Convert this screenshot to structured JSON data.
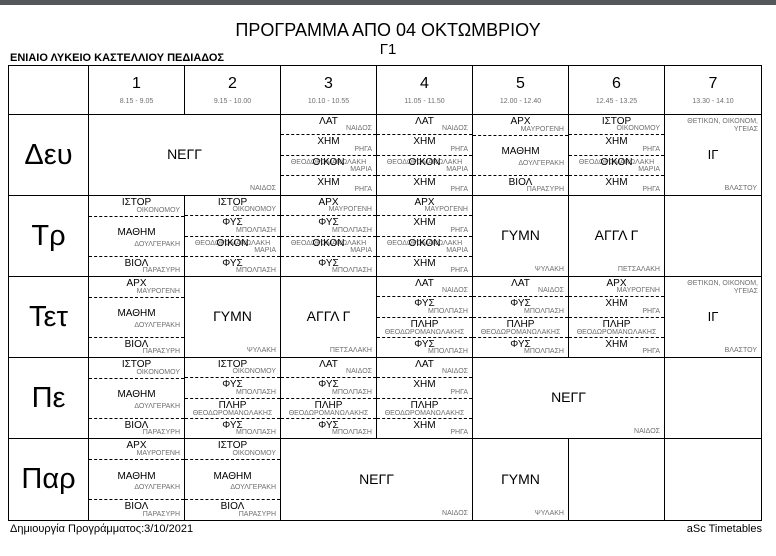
{
  "header": {
    "title": "ΠΡΟΓΡΑΜΜΑ ΑΠΟ 04 ΟΚΤΩΜΒΡΙΟΥ",
    "class_name": "Γ1",
    "school": "ΕΝΙΑΙΟ ΛΥΚΕΙΟ ΚΑΣΤΕΛΛΙΟΥ ΠΕΔΙΑΔΟΣ"
  },
  "footer": {
    "left": "Δημιουργία Προγράμματος:3/10/2021",
    "right": "aSc Timetables"
  },
  "colors": {
    "topbar": "#56575a",
    "teacher_text": "#6f6f6f",
    "grid_line": "#000000"
  },
  "periods": [
    {
      "num": "1",
      "time": "8.15 - 9.05"
    },
    {
      "num": "2",
      "time": "9.15 - 10.00"
    },
    {
      "num": "3",
      "time": "10.10 - 10.55"
    },
    {
      "num": "4",
      "time": "11.05 - 11.50"
    },
    {
      "num": "5",
      "time": "12.00 - 12.40"
    },
    {
      "num": "6",
      "time": "12.45 - 13.25"
    },
    {
      "num": "7",
      "time": "13.30 - 14.10"
    }
  ],
  "days": [
    {
      "label": "Δευ",
      "cells": [
        {
          "kind": "single",
          "span": 2,
          "subject": "ΝΕΓΓ",
          "teacher": "ΝΑΙΔΟΣ"
        },
        {
          "kind": "stack",
          "span": 1,
          "lessons": [
            {
              "subject": "ΛΑΤ",
              "teacher": "ΝΑΙΔΟΣ"
            },
            {
              "subject": "ΧΗΜ",
              "teacher": "ΡΗΓΑ"
            },
            {
              "style": "overlap",
              "subject": "ΟΙΚΟΝ",
              "teacher": "ΘΕΟΔΩΡΟΜΑΝΩΛΑΚΗ",
              "teacher2": "ΜΑΡΙΑ"
            },
            {
              "subject": "ΧΗΜ",
              "teacher": "ΡΗΓΑ"
            }
          ]
        },
        {
          "kind": "stack",
          "span": 1,
          "lessons": [
            {
              "subject": "ΛΑΤ",
              "teacher": "ΝΑΙΔΟΣ"
            },
            {
              "subject": "ΧΗΜ",
              "teacher": "ΡΗΓΑ"
            },
            {
              "style": "overlap",
              "subject": "ΟΙΚΟΝ",
              "teacher": "ΘΕΟΔΩΡΟΜΑΝΩΛΑΚΗ",
              "teacher2": "ΜΑΡΙΑ"
            },
            {
              "subject": "ΧΗΜ",
              "teacher": "ΡΗΓΑ"
            }
          ]
        },
        {
          "kind": "stack",
          "span": 1,
          "lessons": [
            {
              "subject": "ΑΡΧ",
              "teacher": "ΜΑΥΡΟΓΕΝΗ"
            },
            {
              "subject": "ΜΑΘΗΜ",
              "teacher": "ΔΟΥΛΓΕΡΑΚΗ",
              "tall": true
            },
            {
              "subject": "ΒΙΟΛ",
              "teacher": "ΠΑΡΑΣΥΡΗ"
            }
          ]
        },
        {
          "kind": "stack",
          "span": 1,
          "lessons": [
            {
              "subject": "ΙΣΤΟΡ",
              "teacher": "ΟΙΚΟΝΟΜΟΥ"
            },
            {
              "subject": "ΧΗΜ",
              "teacher": "ΡΗΓΑ"
            },
            {
              "style": "overlap",
              "subject": "ΟΙΚΟΝ",
              "teacher": "ΘΕΟΔΩΡΟΜΑΝΩΛΑΚΗ",
              "teacher2": "ΜΑΡΙΑ"
            },
            {
              "subject": "ΧΗΜ",
              "teacher": "ΡΗΓΑ"
            }
          ]
        },
        {
          "kind": "group",
          "span": 1,
          "group": "ΘΕΤΙΚΩΝ, ΟΙΚΟΝΟΜ, ΥΓΕΙΑΣ",
          "subject": "ΙΓ",
          "teacher": "ΒΛΑΣΤΟΥ"
        }
      ]
    },
    {
      "label": "Τρ",
      "cells": [
        {
          "kind": "stack",
          "span": 1,
          "lessons": [
            {
              "subject": "ΙΣΤΟΡ",
              "teacher": "ΟΙΚΟΝΟΜΟΥ"
            },
            {
              "subject": "ΜΑΘΗΜ",
              "teacher": "ΔΟΥΛΓΕΡΑΚΗ",
              "tall": true
            },
            {
              "subject": "ΒΙΟΛ",
              "teacher": "ΠΑΡΑΣΥΡΗ"
            }
          ]
        },
        {
          "kind": "stack",
          "span": 1,
          "lessons": [
            {
              "subject": "ΙΣΤΟΡ",
              "teacher": "ΟΙΚΟΝΟΜΟΥ"
            },
            {
              "subject": "ΦΥΣ",
              "teacher": "ΜΠΟΛΠΑΣΗ"
            },
            {
              "style": "overlap",
              "subject": "ΟΙΚΟΝ",
              "teacher": "ΘΕΟΔΩΡΟΜΑΝΩΛΑΚΗ",
              "teacher2": "ΜΑΡΙΑ"
            },
            {
              "subject": "ΦΥΣ",
              "teacher": "ΜΠΟΛΠΑΣΗ"
            }
          ]
        },
        {
          "kind": "stack",
          "span": 1,
          "lessons": [
            {
              "subject": "ΑΡΧ",
              "teacher": "ΜΑΥΡΟΓΕΝΗ"
            },
            {
              "subject": "ΦΥΣ",
              "teacher": "ΜΠΟΛΠΑΣΗ"
            },
            {
              "style": "overlap",
              "subject": "ΟΙΚΟΝ",
              "teacher": "ΘΕΟΔΩΡΟΜΑΝΩΛΑΚΗ",
              "teacher2": "ΜΑΡΙΑ"
            },
            {
              "subject": "ΦΥΣ",
              "teacher": "ΜΠΟΛΠΑΣΗ"
            }
          ]
        },
        {
          "kind": "stack",
          "span": 1,
          "lessons": [
            {
              "subject": "ΑΡΧ",
              "teacher": "ΜΑΥΡΟΓΕΝΗ"
            },
            {
              "subject": "ΧΗΜ",
              "teacher": "ΡΗΓΑ"
            },
            {
              "style": "overlap",
              "subject": "ΟΙΚΟΝ",
              "teacher": "ΘΕΟΔΩΡΟΜΑΝΩΛΑΚΗ",
              "teacher2": "ΜΑΡΙΑ"
            },
            {
              "subject": "ΧΗΜ",
              "teacher": "ΡΗΓΑ"
            }
          ]
        },
        {
          "kind": "single",
          "span": 1,
          "subject": "ΓΥΜΝ",
          "teacher": "ΨΥΛΑΚΗ"
        },
        {
          "kind": "single",
          "span": 1,
          "subject": "ΑΓΓΛ Γ",
          "teacher": "ΠΕΤΣΑΛΑΚΗ"
        },
        {
          "kind": "empty",
          "span": 1
        }
      ]
    },
    {
      "label": "Τετ",
      "cells": [
        {
          "kind": "stack",
          "span": 1,
          "lessons": [
            {
              "subject": "ΑΡΧ",
              "teacher": "ΜΑΥΡΟΓΕΝΗ"
            },
            {
              "subject": "ΜΑΘΗΜ",
              "teacher": "ΔΟΥΛΓΕΡΑΚΗ",
              "tall": true
            },
            {
              "subject": "ΒΙΟΛ",
              "teacher": "ΠΑΡΑΣΥΡΗ"
            }
          ]
        },
        {
          "kind": "single",
          "span": 1,
          "subject": "ΓΥΜΝ",
          "teacher": "ΨΥΛΑΚΗ"
        },
        {
          "kind": "single",
          "span": 1,
          "subject": "ΑΓΓΛ Γ",
          "teacher": "ΠΕΤΣΑΛΑΚΗ"
        },
        {
          "kind": "stack",
          "span": 1,
          "lessons": [
            {
              "subject": "ΛΑΤ",
              "teacher": "ΝΑΙΔΟΣ"
            },
            {
              "subject": "ΦΥΣ",
              "teacher": "ΜΠΟΛΠΑΣΗ"
            },
            {
              "style": "twoline",
              "subject": "ΠΛΗΡ",
              "teacher": "ΘΕΟΔΩΡΟΜΑΝΩΛΑΚΗΣ"
            },
            {
              "subject": "ΦΥΣ",
              "teacher": "ΜΠΟΛΠΑΣΗ"
            }
          ]
        },
        {
          "kind": "stack",
          "span": 1,
          "lessons": [
            {
              "subject": "ΛΑΤ",
              "teacher": "ΝΑΙΔΟΣ"
            },
            {
              "subject": "ΦΥΣ",
              "teacher": "ΜΠΟΛΠΑΣΗ"
            },
            {
              "style": "twoline",
              "subject": "ΠΛΗΡ",
              "teacher": "ΘΕΟΔΩΡΟΜΑΝΩΛΑΚΗΣ"
            },
            {
              "subject": "ΦΥΣ",
              "teacher": "ΜΠΟΛΠΑΣΗ"
            }
          ]
        },
        {
          "kind": "stack",
          "span": 1,
          "lessons": [
            {
              "subject": "ΑΡΧ",
              "teacher": "ΜΑΥΡΟΓΕΝΗ"
            },
            {
              "subject": "ΧΗΜ",
              "teacher": "ΡΗΓΑ"
            },
            {
              "style": "twoline",
              "subject": "ΠΛΗΡ",
              "teacher": "ΘΕΟΔΩΡΟΜΑΝΩΛΑΚΗΣ"
            },
            {
              "subject": "ΧΗΜ",
              "teacher": "ΡΗΓΑ"
            }
          ]
        },
        {
          "kind": "group",
          "span": 1,
          "group": "ΘΕΤΙΚΩΝ, ΟΙΚΟΝΟΜ, ΥΓΕΙΑΣ",
          "subject": "ΙΓ",
          "teacher": "ΒΛΑΣΤΟΥ"
        }
      ]
    },
    {
      "label": "Πε",
      "cells": [
        {
          "kind": "stack",
          "span": 1,
          "lessons": [
            {
              "subject": "ΙΣΤΟΡ",
              "teacher": "ΟΙΚΟΝΟΜΟΥ"
            },
            {
              "subject": "ΜΑΘΗΜ",
              "teacher": "ΔΟΥΛΓΕΡΑΚΗ",
              "tall": true
            },
            {
              "subject": "ΒΙΟΛ",
              "teacher": "ΠΑΡΑΣΥΡΗ"
            }
          ]
        },
        {
          "kind": "stack",
          "span": 1,
          "lessons": [
            {
              "subject": "ΙΣΤΟΡ",
              "teacher": "ΟΙΚΟΝΟΜΟΥ"
            },
            {
              "subject": "ΦΥΣ",
              "teacher": "ΜΠΟΛΠΑΣΗ"
            },
            {
              "style": "twoline",
              "subject": "ΠΛΗΡ",
              "teacher": "ΘΕΟΔΩΡΟΜΑΝΩΛΑΚΗΣ"
            },
            {
              "subject": "ΦΥΣ",
              "teacher": "ΜΠΟΛΠΑΣΗ"
            }
          ]
        },
        {
          "kind": "stack",
          "span": 1,
          "lessons": [
            {
              "subject": "ΛΑΤ",
              "teacher": "ΝΑΙΔΟΣ"
            },
            {
              "subject": "ΦΥΣ",
              "teacher": "ΜΠΟΛΠΑΣΗ"
            },
            {
              "style": "twoline",
              "subject": "ΠΛΗΡ",
              "teacher": "ΘΕΟΔΩΡΟΜΑΝΩΛΑΚΗΣ"
            },
            {
              "subject": "ΦΥΣ",
              "teacher": "ΜΠΟΛΠΑΣΗ"
            }
          ]
        },
        {
          "kind": "stack",
          "span": 1,
          "lessons": [
            {
              "subject": "ΛΑΤ",
              "teacher": "ΝΑΙΔΟΣ"
            },
            {
              "subject": "ΧΗΜ",
              "teacher": "ΡΗΓΑ"
            },
            {
              "style": "twoline",
              "subject": "ΠΛΗΡ",
              "teacher": "ΘΕΟΔΩΡΟΜΑΝΩΛΑΚΗΣ"
            },
            {
              "subject": "ΧΗΜ",
              "teacher": "ΡΗΓΑ"
            }
          ]
        },
        {
          "kind": "single",
          "span": 2,
          "subject": "ΝΕΓΓ",
          "teacher": "ΝΑΙΔΟΣ"
        },
        {
          "kind": "empty",
          "span": 1
        }
      ]
    },
    {
      "label": "Παρ",
      "cells": [
        {
          "kind": "stack",
          "span": 1,
          "lessons": [
            {
              "subject": "ΑΡΧ",
              "teacher": "ΜΑΥΡΟΓΕΝΗ"
            },
            {
              "subject": "ΜΑΘΗΜ",
              "teacher": "ΔΟΥΛΓΕΡΑΚΗ",
              "tall": true
            },
            {
              "subject": "ΒΙΟΛ",
              "teacher": "ΠΑΡΑΣΥΡΗ"
            }
          ]
        },
        {
          "kind": "stack",
          "span": 1,
          "lessons": [
            {
              "subject": "ΙΣΤΟΡ",
              "teacher": "ΟΙΚΟΝΟΜΟΥ"
            },
            {
              "subject": "ΜΑΘΗΜ",
              "teacher": "ΔΟΥΛΓΕΡΑΚΗ",
              "tall": true
            },
            {
              "subject": "ΒΙΟΛ",
              "teacher": "ΠΑΡΑΣΥΡΗ"
            }
          ]
        },
        {
          "kind": "single",
          "span": 2,
          "subject": "ΝΕΓΓ",
          "teacher": "ΝΑΙΔΟΣ"
        },
        {
          "kind": "single",
          "span": 1,
          "subject": "ΓΥΜΝ",
          "teacher": "ΨΥΛΑΚΗ"
        },
        {
          "kind": "empty",
          "span": 1
        },
        {
          "kind": "empty",
          "span": 1
        }
      ]
    }
  ]
}
